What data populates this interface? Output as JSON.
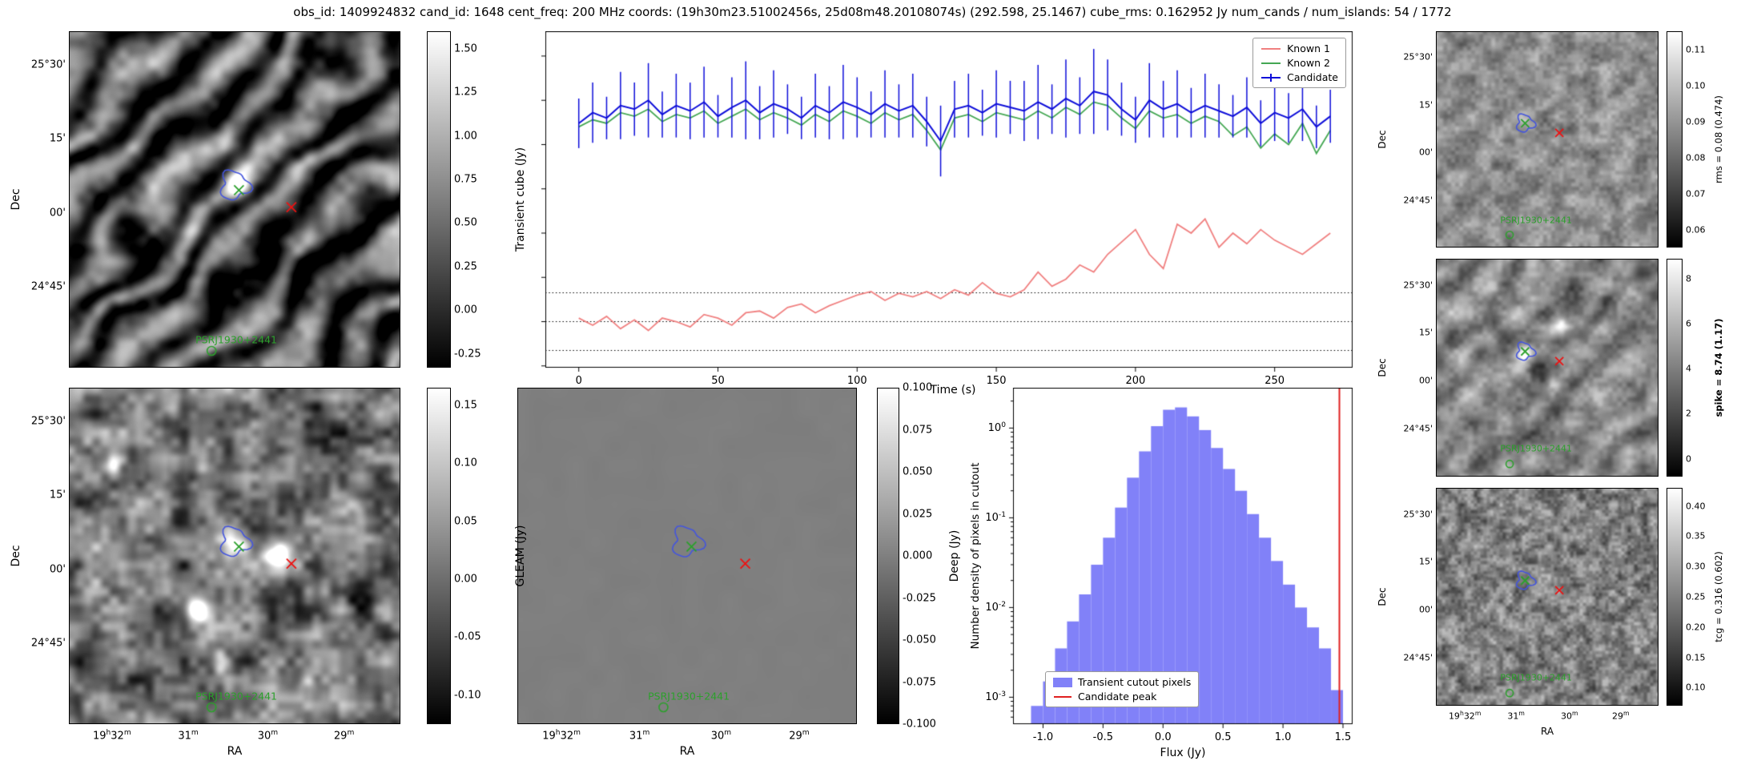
{
  "title": "obs_id: 1409924832 cand_id: 1648 cent_freq: 200 MHz coords: (19h30m23.51002456s, 25d08m48.20108074s) (292.598, 25.1467) cube_rms: 0.162952 Jy num_cands / num_islands: 54 / 1772",
  "figure": {
    "psr_label": "PSRJ1930+2441",
    "marker_color_candidate": "#2ca02c",
    "marker_color_known": "#ee1111",
    "contour_color": "#4455dd"
  },
  "axes": {
    "dec_label": "Dec",
    "ra_label": "RA",
    "dec_ticks": [
      "25°30'",
      "15'",
      "00'",
      "24°45'"
    ],
    "ra_ticks": [
      "19h32m",
      "31m",
      "30m",
      "29m"
    ]
  },
  "chart_data": [
    {
      "id": "lightcurve",
      "type": "line",
      "xlabel": "Time (s)",
      "ylabel": "Transient cube (Jy)",
      "xlim": [
        -12,
        278
      ],
      "ylim": [
        -0.26,
        1.64
      ],
      "x_ticks": [
        0,
        50,
        100,
        150,
        200,
        250
      ],
      "rms_dotted_lines": [
        0.162952,
        0.0,
        -0.162952
      ],
      "legend_position": "upper right",
      "x": [
        0,
        5,
        10,
        15,
        20,
        25,
        30,
        35,
        40,
        45,
        50,
        55,
        60,
        65,
        70,
        75,
        80,
        85,
        90,
        95,
        100,
        105,
        110,
        115,
        120,
        125,
        130,
        135,
        140,
        145,
        150,
        155,
        160,
        165,
        170,
        175,
        180,
        185,
        190,
        195,
        200,
        205,
        210,
        215,
        220,
        225,
        230,
        235,
        240,
        245,
        250,
        255,
        260,
        265,
        270
      ],
      "series": [
        {
          "name": "Known 1",
          "color": "#f08080",
          "values": [
            0.02,
            -0.02,
            0.03,
            -0.04,
            0.01,
            -0.05,
            0.02,
            0.0,
            -0.03,
            0.04,
            0.02,
            -0.02,
            0.05,
            0.06,
            0.02,
            0.08,
            0.1,
            0.05,
            0.09,
            0.12,
            0.15,
            0.17,
            0.12,
            0.16,
            0.14,
            0.17,
            0.13,
            0.18,
            0.15,
            0.22,
            0.16,
            0.14,
            0.18,
            0.28,
            0.2,
            0.24,
            0.32,
            0.28,
            0.38,
            0.45,
            0.52,
            0.38,
            0.3,
            0.55,
            0.5,
            0.58,
            0.42,
            0.5,
            0.44,
            0.52,
            0.46,
            0.42,
            0.38,
            0.44,
            0.5
          ]
        },
        {
          "name": "Known 2",
          "color": "#44a753",
          "values": [
            1.1,
            1.14,
            1.12,
            1.18,
            1.16,
            1.2,
            1.13,
            1.17,
            1.15,
            1.19,
            1.12,
            1.16,
            1.2,
            1.14,
            1.18,
            1.15,
            1.11,
            1.17,
            1.13,
            1.19,
            1.16,
            1.12,
            1.18,
            1.14,
            1.17,
            1.08,
            0.97,
            1.15,
            1.17,
            1.13,
            1.18,
            1.16,
            1.14,
            1.19,
            1.15,
            1.21,
            1.17,
            1.24,
            1.22,
            1.15,
            1.09,
            1.19,
            1.15,
            1.17,
            1.12,
            1.16,
            1.13,
            1.05,
            1.1,
            0.98,
            1.06,
            1.0,
            1.12,
            0.95,
            1.08
          ]
        },
        {
          "name": "Candidate",
          "color": "#0d0dd9",
          "values": [
            1.12,
            1.18,
            1.15,
            1.22,
            1.2,
            1.25,
            1.17,
            1.22,
            1.19,
            1.24,
            1.16,
            1.21,
            1.25,
            1.18,
            1.23,
            1.2,
            1.15,
            1.22,
            1.18,
            1.24,
            1.21,
            1.17,
            1.23,
            1.19,
            1.22,
            1.13,
            1.02,
            1.2,
            1.22,
            1.18,
            1.23,
            1.21,
            1.19,
            1.24,
            1.2,
            1.26,
            1.22,
            1.3,
            1.28,
            1.2,
            1.14,
            1.25,
            1.2,
            1.23,
            1.18,
            1.22,
            1.19,
            1.16,
            1.21,
            1.12,
            1.18,
            1.15,
            1.2,
            1.1,
            1.16
          ],
          "errors": [
            0.14,
            0.17,
            0.12,
            0.19,
            0.15,
            0.21,
            0.13,
            0.18,
            0.16,
            0.2,
            0.12,
            0.17,
            0.22,
            0.15,
            0.19,
            0.14,
            0.12,
            0.18,
            0.15,
            0.21,
            0.17,
            0.13,
            0.19,
            0.15,
            0.18,
            0.14,
            0.2,
            0.16,
            0.18,
            0.13,
            0.19,
            0.15,
            0.17,
            0.21,
            0.14,
            0.22,
            0.16,
            0.24,
            0.2,
            0.15,
            0.13,
            0.21,
            0.16,
            0.19,
            0.14,
            0.18,
            0.15,
            0.12,
            0.17,
            0.13,
            0.16,
            0.14,
            0.18,
            0.12,
            0.15
          ]
        }
      ]
    },
    {
      "id": "flux_histogram",
      "type": "bar",
      "xlabel": "Flux (Jy)",
      "ylabel": "Number density of pixels in cutout",
      "y_scale": "log",
      "xlim": [
        -1.25,
        1.58
      ],
      "ylim_log10": [
        -3.3,
        0.45
      ],
      "x_ticks": [
        -1.0,
        -0.5,
        0.0,
        0.5,
        1.0,
        1.5
      ],
      "y_tick_labels": [
        "10^0",
        "10^-1",
        "10^-2",
        "10^-3"
      ],
      "bin_start": -1.1,
      "bin_width": 0.1,
      "densities": [
        0.0008,
        0.0015,
        0.0035,
        0.007,
        0.014,
        0.03,
        0.06,
        0.13,
        0.28,
        0.55,
        1.05,
        1.6,
        1.7,
        1.35,
        0.95,
        0.6,
        0.35,
        0.2,
        0.11,
        0.06,
        0.033,
        0.018,
        0.01,
        0.006,
        0.0035,
        0.0012
      ],
      "candidate_peak_x": 1.47,
      "bar_color": "#8181f8",
      "peak_line_color": "#e02020",
      "legend": [
        "Transient cutout pixels",
        "Candidate peak"
      ]
    },
    {
      "id": "transient_cube_cutout",
      "type": "heatmap",
      "xlabel": "RA",
      "ylabel": "Dec",
      "colorbar": {
        "label": "Transient cube (Jy)",
        "bold": false,
        "ticks": [
          "1.50",
          "1.25",
          "1.00",
          "0.75",
          "0.50",
          "0.25",
          "0.00",
          "-0.25"
        ],
        "clim": [
          -0.33,
          1.6
        ]
      }
    },
    {
      "id": "gleam_cutout",
      "type": "heatmap",
      "xlabel": "RA",
      "ylabel": "Dec",
      "colorbar": {
        "label": "GLEAM (Jy)",
        "bold": false,
        "ticks": [
          "0.15",
          "0.10",
          "0.05",
          "0.00",
          "-0.05",
          "-0.10"
        ],
        "clim": [
          -0.125,
          0.165
        ]
      }
    },
    {
      "id": "deep_cutout",
      "type": "heatmap",
      "xlabel": "RA",
      "ylabel": "Dec",
      "colorbar": {
        "label": "Deep (Jy)",
        "bold": false,
        "ticks": [
          "0.100",
          "0.075",
          "0.050",
          "0.025",
          "0.000",
          "-0.025",
          "-0.050",
          "-0.075",
          "-0.100"
        ],
        "clim": [
          -0.1,
          0.1
        ]
      }
    },
    {
      "id": "rms_map",
      "type": "heatmap",
      "xlabel": "RA",
      "ylabel": "Dec",
      "colorbar": {
        "label": "rms = 0.08 (0.474)",
        "bold": false,
        "ticks": [
          "0.11",
          "0.10",
          "0.09",
          "0.08",
          "0.07",
          "0.06"
        ],
        "clim": [
          0.055,
          0.115
        ]
      }
    },
    {
      "id": "spike_map",
      "type": "heatmap",
      "xlabel": "RA",
      "ylabel": "Dec",
      "colorbar": {
        "label": "spike = 8.74 (1.17)",
        "bold": true,
        "ticks": [
          "8",
          "6",
          "4",
          "2",
          "0"
        ],
        "clim": [
          -0.8,
          8.9
        ]
      }
    },
    {
      "id": "tcg_map",
      "type": "heatmap",
      "xlabel": "RA",
      "ylabel": "Dec",
      "colorbar": {
        "label": "tcg = 0.316 (0.602)",
        "bold": false,
        "ticks": [
          "0.40",
          "0.35",
          "0.30",
          "0.25",
          "0.20",
          "0.15",
          "0.10"
        ],
        "clim": [
          0.07,
          0.43
        ]
      }
    }
  ]
}
